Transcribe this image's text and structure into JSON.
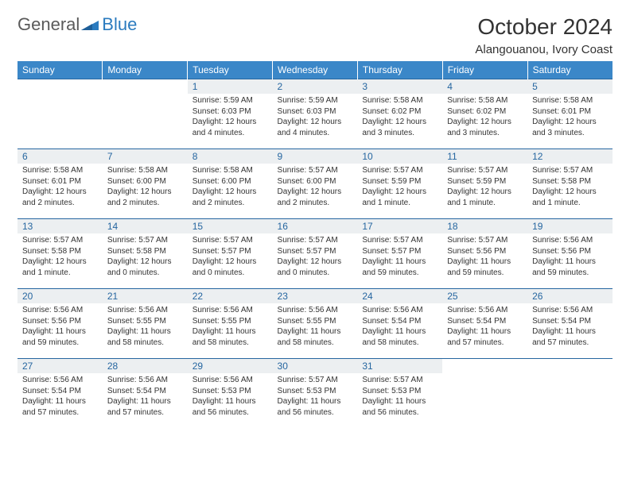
{
  "logo": {
    "general": "General",
    "blue": "Blue"
  },
  "title": "October 2024",
  "location": "Alangouanou, Ivory Coast",
  "colors": {
    "header_bg": "#3b87c8",
    "header_fg": "#ffffff",
    "daynum_bg": "#eceff1",
    "daynum_fg": "#2666a0",
    "row_border": "#2666a0",
    "body_text": "#333333",
    "logo_gray": "#5a5a5a",
    "logo_blue": "#2b7bbf"
  },
  "weekdays": [
    "Sunday",
    "Monday",
    "Tuesday",
    "Wednesday",
    "Thursday",
    "Friday",
    "Saturday"
  ],
  "weeks": [
    [
      null,
      null,
      {
        "n": "1",
        "sr": "5:59 AM",
        "ss": "6:03 PM",
        "dl": "12 hours and 4 minutes."
      },
      {
        "n": "2",
        "sr": "5:59 AM",
        "ss": "6:03 PM",
        "dl": "12 hours and 4 minutes."
      },
      {
        "n": "3",
        "sr": "5:58 AM",
        "ss": "6:02 PM",
        "dl": "12 hours and 3 minutes."
      },
      {
        "n": "4",
        "sr": "5:58 AM",
        "ss": "6:02 PM",
        "dl": "12 hours and 3 minutes."
      },
      {
        "n": "5",
        "sr": "5:58 AM",
        "ss": "6:01 PM",
        "dl": "12 hours and 3 minutes."
      }
    ],
    [
      {
        "n": "6",
        "sr": "5:58 AM",
        "ss": "6:01 PM",
        "dl": "12 hours and 2 minutes."
      },
      {
        "n": "7",
        "sr": "5:58 AM",
        "ss": "6:00 PM",
        "dl": "12 hours and 2 minutes."
      },
      {
        "n": "8",
        "sr": "5:58 AM",
        "ss": "6:00 PM",
        "dl": "12 hours and 2 minutes."
      },
      {
        "n": "9",
        "sr": "5:57 AM",
        "ss": "6:00 PM",
        "dl": "12 hours and 2 minutes."
      },
      {
        "n": "10",
        "sr": "5:57 AM",
        "ss": "5:59 PM",
        "dl": "12 hours and 1 minute."
      },
      {
        "n": "11",
        "sr": "5:57 AM",
        "ss": "5:59 PM",
        "dl": "12 hours and 1 minute."
      },
      {
        "n": "12",
        "sr": "5:57 AM",
        "ss": "5:58 PM",
        "dl": "12 hours and 1 minute."
      }
    ],
    [
      {
        "n": "13",
        "sr": "5:57 AM",
        "ss": "5:58 PM",
        "dl": "12 hours and 1 minute."
      },
      {
        "n": "14",
        "sr": "5:57 AM",
        "ss": "5:58 PM",
        "dl": "12 hours and 0 minutes."
      },
      {
        "n": "15",
        "sr": "5:57 AM",
        "ss": "5:57 PM",
        "dl": "12 hours and 0 minutes."
      },
      {
        "n": "16",
        "sr": "5:57 AM",
        "ss": "5:57 PM",
        "dl": "12 hours and 0 minutes."
      },
      {
        "n": "17",
        "sr": "5:57 AM",
        "ss": "5:57 PM",
        "dl": "11 hours and 59 minutes."
      },
      {
        "n": "18",
        "sr": "5:57 AM",
        "ss": "5:56 PM",
        "dl": "11 hours and 59 minutes."
      },
      {
        "n": "19",
        "sr": "5:56 AM",
        "ss": "5:56 PM",
        "dl": "11 hours and 59 minutes."
      }
    ],
    [
      {
        "n": "20",
        "sr": "5:56 AM",
        "ss": "5:56 PM",
        "dl": "11 hours and 59 minutes."
      },
      {
        "n": "21",
        "sr": "5:56 AM",
        "ss": "5:55 PM",
        "dl": "11 hours and 58 minutes."
      },
      {
        "n": "22",
        "sr": "5:56 AM",
        "ss": "5:55 PM",
        "dl": "11 hours and 58 minutes."
      },
      {
        "n": "23",
        "sr": "5:56 AM",
        "ss": "5:55 PM",
        "dl": "11 hours and 58 minutes."
      },
      {
        "n": "24",
        "sr": "5:56 AM",
        "ss": "5:54 PM",
        "dl": "11 hours and 58 minutes."
      },
      {
        "n": "25",
        "sr": "5:56 AM",
        "ss": "5:54 PM",
        "dl": "11 hours and 57 minutes."
      },
      {
        "n": "26",
        "sr": "5:56 AM",
        "ss": "5:54 PM",
        "dl": "11 hours and 57 minutes."
      }
    ],
    [
      {
        "n": "27",
        "sr": "5:56 AM",
        "ss": "5:54 PM",
        "dl": "11 hours and 57 minutes."
      },
      {
        "n": "28",
        "sr": "5:56 AM",
        "ss": "5:54 PM",
        "dl": "11 hours and 57 minutes."
      },
      {
        "n": "29",
        "sr": "5:56 AM",
        "ss": "5:53 PM",
        "dl": "11 hours and 56 minutes."
      },
      {
        "n": "30",
        "sr": "5:57 AM",
        "ss": "5:53 PM",
        "dl": "11 hours and 56 minutes."
      },
      {
        "n": "31",
        "sr": "5:57 AM",
        "ss": "5:53 PM",
        "dl": "11 hours and 56 minutes."
      },
      null,
      null
    ]
  ],
  "labels": {
    "sunrise": "Sunrise:",
    "sunset": "Sunset:",
    "daylight": "Daylight:"
  }
}
